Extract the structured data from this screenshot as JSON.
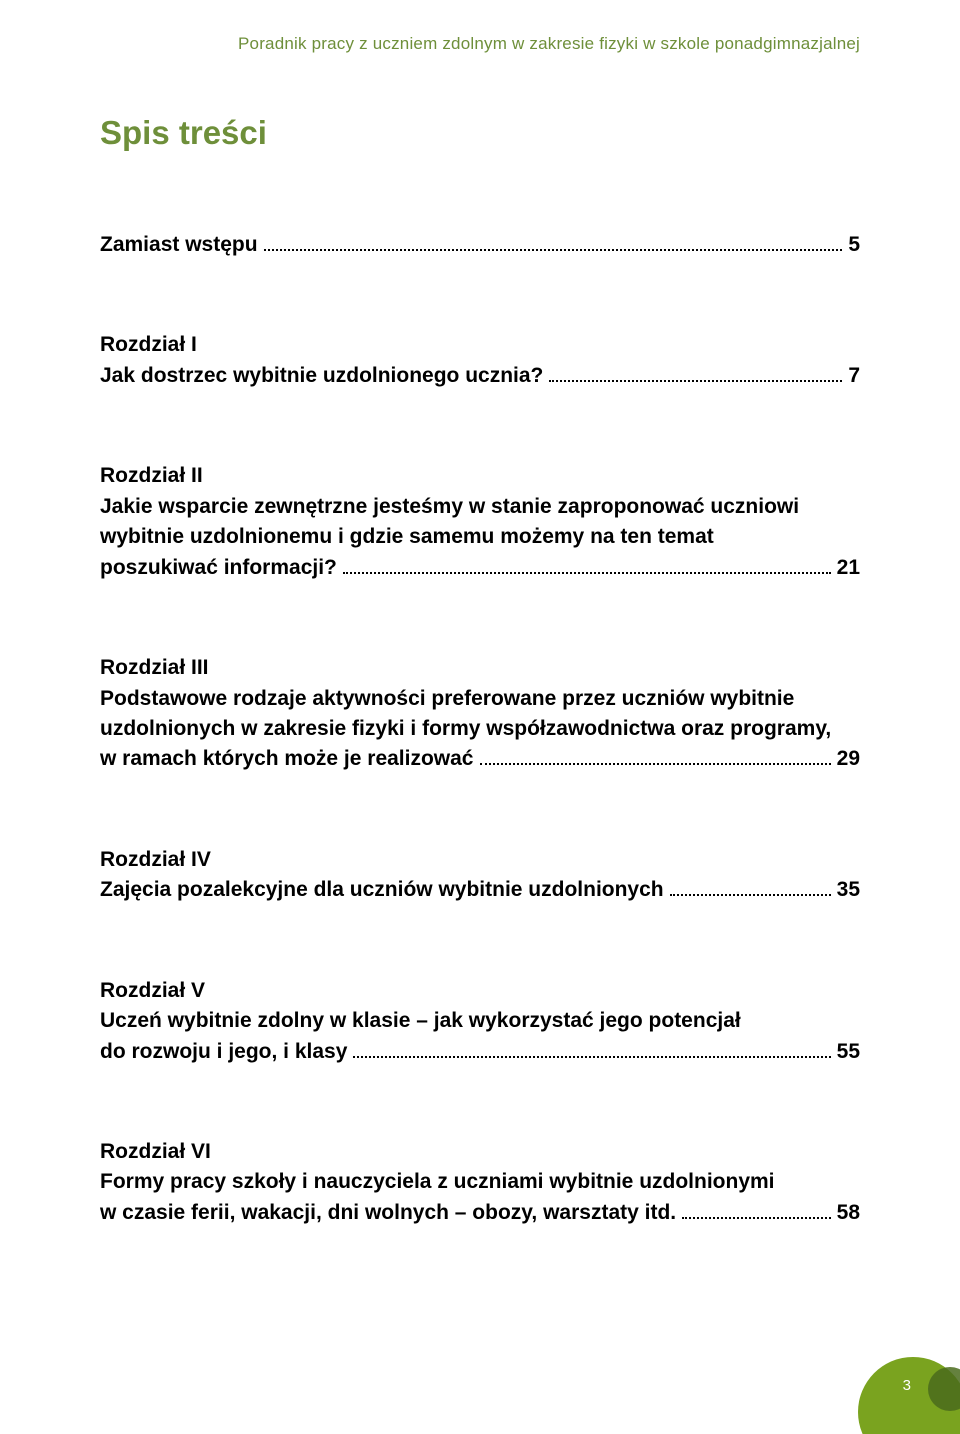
{
  "running_head": "Poradnik pracy z uczniem zdolnym w zakresie fizyki w szkole ponadgimnazjalnej",
  "toc_title": "Spis treści",
  "entries": [
    {
      "chapter": "",
      "pre_lines": [],
      "last_line": "Zamiast wstępu",
      "page": "5"
    },
    {
      "chapter": "Rozdział I",
      "pre_lines": [],
      "last_line": "Jak dostrzec wybitnie uzdolnionego ucznia?",
      "page": "7"
    },
    {
      "chapter": "Rozdział II",
      "pre_lines": [
        "Jakie wsparcie zewnętrzne jesteśmy w stanie zaproponować uczniowi",
        "wybitnie uzdolnionemu i gdzie samemu możemy na ten temat"
      ],
      "last_line": "poszukiwać informacji?",
      "page": "21"
    },
    {
      "chapter": "Rozdział III",
      "pre_lines": [
        "Podstawowe rodzaje aktywności preferowane przez uczniów wybitnie",
        "uzdolnionych w zakresie fizyki i formy współzawodnictwa oraz programy,"
      ],
      "last_line": "w ramach których może je realizować",
      "page": "29"
    },
    {
      "chapter": "Rozdział IV",
      "pre_lines": [],
      "last_line": "Zajęcia pozalekcyjne dla uczniów wybitnie uzdolnionych",
      "page": "35"
    },
    {
      "chapter": "Rozdział V",
      "pre_lines": [
        "Uczeń wybitnie zdolny w klasie – jak wykorzystać jego potencjał"
      ],
      "last_line": "do rozwoju i jego, i klasy",
      "page": "55"
    },
    {
      "chapter": "Rozdział VI",
      "pre_lines": [
        "Formy pracy szkoły i nauczyciela z uczniami wybitnie uzdolnionymi"
      ],
      "last_line": "w czasie ferii, wakacji, dni wolnych – obozy, warsztaty itd.",
      "page": "58"
    }
  ],
  "page_number": "3",
  "colors": {
    "accent": "#6e8f3a",
    "deco_big": "#7aa31f",
    "deco_small": "#4a6b1c",
    "text": "#000000",
    "bg": "#ffffff"
  }
}
